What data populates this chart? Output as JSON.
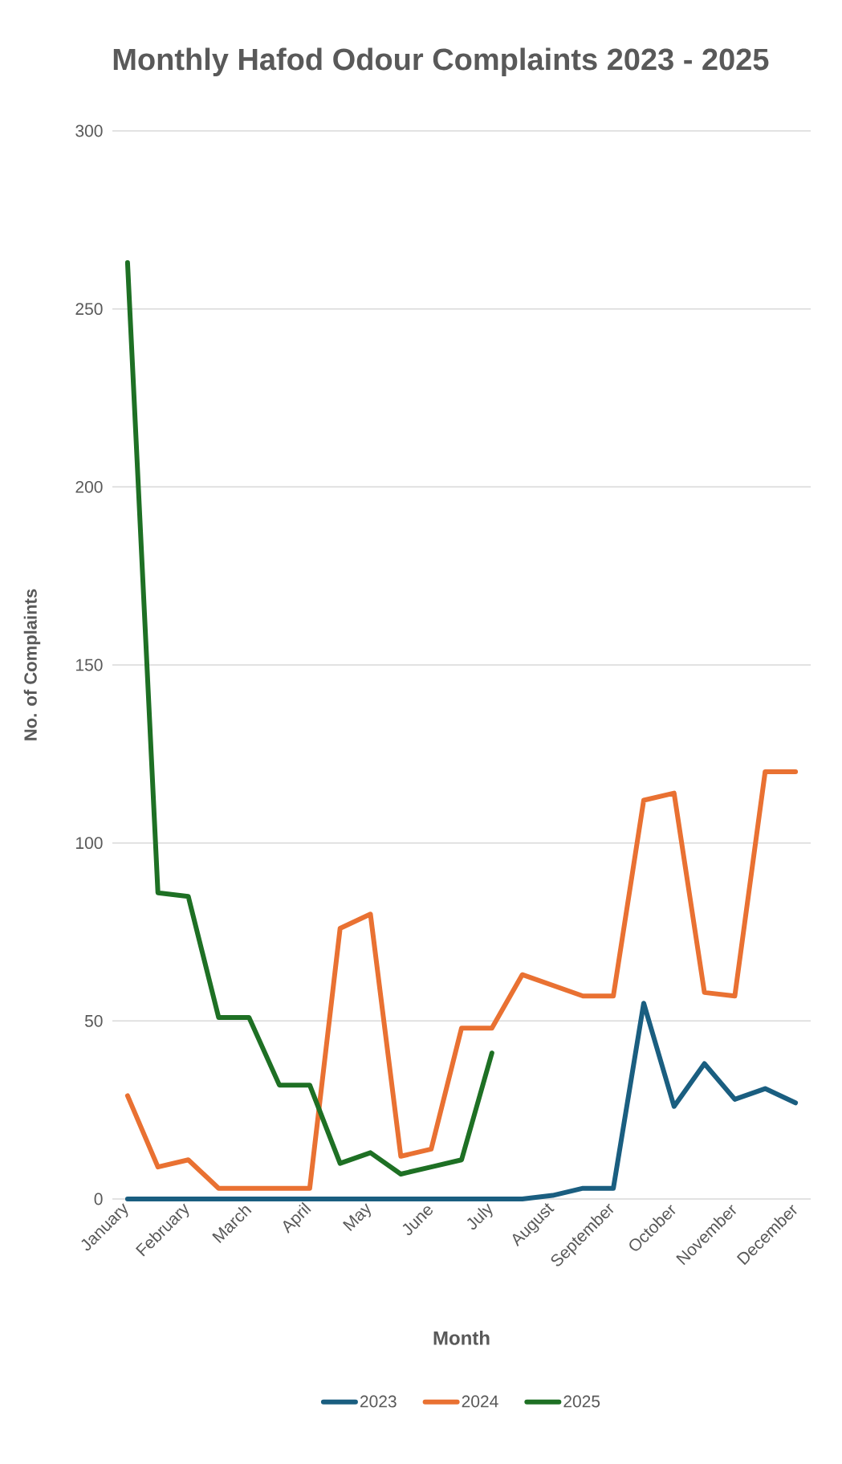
{
  "chart_data": {
    "type": "line",
    "title": "Monthly Hafod Odour Complaints 2023 - 2025",
    "xlabel": "Month",
    "ylabel": "No. of Complaints",
    "categories": [
      "January",
      null,
      "February",
      null,
      "March",
      null,
      "April",
      null,
      "May",
      null,
      "June",
      null,
      "July",
      null,
      "August",
      null,
      "September",
      null,
      "October",
      null,
      "November",
      null,
      "December"
    ],
    "series": [
      {
        "name": "2023",
        "color": "#1a5e80",
        "values": [
          0,
          0,
          0,
          0,
          0,
          0,
          0,
          0,
          0,
          0,
          0,
          0,
          0,
          0,
          1,
          3,
          3,
          55,
          26,
          38,
          28,
          31,
          27
        ]
      },
      {
        "name": "2024",
        "color": "#e97132",
        "values": [
          29,
          9,
          11,
          3,
          3,
          3,
          3,
          76,
          80,
          12,
          14,
          48,
          48,
          63,
          60,
          57,
          57,
          112,
          114,
          58,
          57,
          120,
          120
        ]
      },
      {
        "name": "2025",
        "color": "#1e7024",
        "values": [
          263,
          86,
          85,
          51,
          51,
          32,
          32,
          10,
          13,
          7,
          9,
          11,
          41,
          null,
          null,
          null,
          null,
          null,
          null,
          null,
          null,
          null,
          null
        ]
      }
    ],
    "ylim": [
      0,
      300
    ],
    "yticks": [
      0,
      50,
      100,
      150,
      200,
      250,
      300
    ],
    "grid": "y",
    "legend": "bottom"
  }
}
